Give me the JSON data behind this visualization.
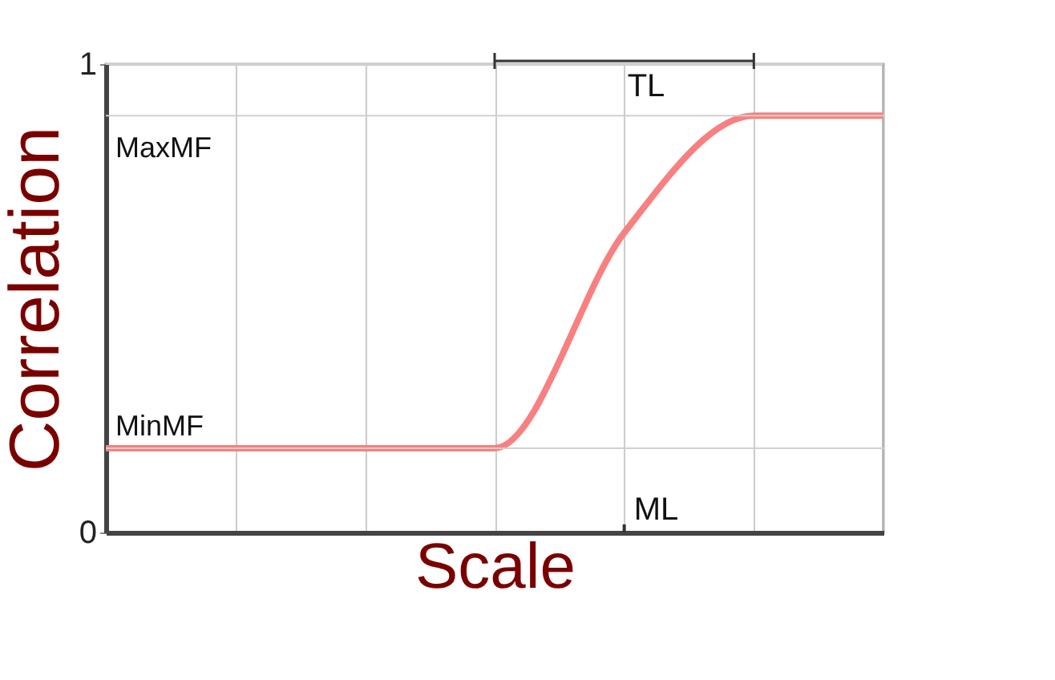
{
  "chart_data": {
    "type": "line",
    "xlabel": "Scale",
    "ylabel": "Correlation",
    "categories": [
      null,
      null,
      null,
      null,
      null,
      null,
      null
    ],
    "series": [
      {
        "color": "#f88080",
        "values": [
          0.18,
          0.18,
          0.18,
          0.18,
          0.64,
          0.89,
          0.89
        ]
      }
    ],
    "ylim": [
      0,
      1
    ],
    "yticks": [
      0,
      1
    ],
    "grid": "x",
    "ref_lines": [
      {
        "axis": "y",
        "value": 0.18,
        "label": "MinMF",
        "color": "#d0d0d0"
      },
      {
        "axis": "y",
        "value": 0.89,
        "label": "MaxMF",
        "color": "#d0d0d0"
      },
      {
        "axis": "y",
        "value": 1,
        "color": "#d0d0d0"
      }
    ],
    "annotations": [
      "TL",
      "ML"
    ]
  }
}
